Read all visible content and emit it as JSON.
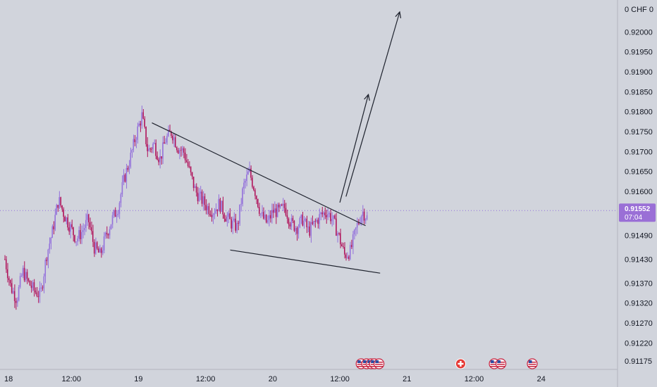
{
  "colors": {
    "background": "#d1d4dc",
    "up_candle": "#9370db",
    "down_candle": "#b0125a",
    "trendline": "#1e222d",
    "price_badge": "#9a6fd6",
    "price_line": "#9370db",
    "event_us": "#c6203e",
    "event_ch": "#e53935"
  },
  "chart_data": {
    "type": "candlestick",
    "symbol_unit": "CHF",
    "y_axis": {
      "header_label": "0 CHF 0",
      "ylim": [
        0.9115,
        0.9208
      ],
      "ticks": [
        "0.92000",
        "0.91950",
        "0.91900",
        "0.91850",
        "0.91800",
        "0.91750",
        "0.91700",
        "0.91650",
        "0.91600",
        "0.91490",
        "0.91430",
        "0.91370",
        "0.91320",
        "0.91270",
        "0.91220",
        "0.91175"
      ],
      "tick_values": [
        0.92,
        0.9195,
        0.919,
        0.9185,
        0.918,
        0.9175,
        0.917,
        0.9165,
        0.916,
        0.9149,
        0.9143,
        0.9137,
        0.9132,
        0.9127,
        0.9122,
        0.91175
      ]
    },
    "x_axis": {
      "ticks": [
        "18",
        "12:00",
        "19",
        "12:00",
        "20",
        "12:00",
        "21",
        "12:00",
        "24"
      ],
      "tick_hours": [
        0,
        12,
        24,
        36,
        48,
        60,
        72,
        84,
        96
      ],
      "xlim_hours": [
        0,
        108
      ]
    },
    "current_price": {
      "value": 0.91552,
      "label": "0.91552",
      "countdown": "07:04"
    },
    "bars_per_hour": 4,
    "ohlc_anchor_closes": [
      0.9143,
      0.9136,
      0.9133,
      0.914,
      0.9137,
      0.9135,
      0.9134,
      0.9144,
      0.915,
      0.9158,
      0.9154,
      0.9151,
      0.9148,
      0.915,
      0.9153,
      0.9146,
      0.9144,
      0.9149,
      0.9153,
      0.9156,
      0.9163,
      0.9168,
      0.9174,
      0.9179,
      0.917,
      0.9172,
      0.9168,
      0.9173,
      0.9175,
      0.9171,
      0.917,
      0.9165,
      0.916,
      0.9158,
      0.9156,
      0.9155,
      0.9157,
      0.9154,
      0.9152,
      0.9151,
      0.9161,
      0.9165,
      0.916,
      0.9154,
      0.9152,
      0.9155,
      0.9155,
      0.9156,
      0.9152,
      0.9151,
      0.9153,
      0.915,
      0.9152,
      0.9154,
      0.9155,
      0.9153,
      0.9149,
      0.9144,
      0.9145,
      0.9151,
      0.9155,
      0.9153
    ],
    "trendlines": [
      {
        "name": "upper-wedge-line",
        "start": {
          "hours": 26.4,
          "price": 0.91772
        },
        "end": {
          "hours": 64.6,
          "price": 0.91514
        }
      },
      {
        "name": "lower-wedge-line",
        "start": {
          "hours": 40.4,
          "price": 0.91453
        },
        "end": {
          "hours": 67.2,
          "price": 0.91395
        }
      },
      {
        "name": "target-arrow-1",
        "start": {
          "hours": 60.0,
          "price": 0.91572
        },
        "end": {
          "hours": 65.1,
          "price": 0.91843
        }
      },
      {
        "name": "target-arrow-2",
        "start": {
          "hours": 61.1,
          "price": 0.91587
        },
        "end": {
          "hours": 70.7,
          "price": 0.9205
        }
      }
    ],
    "events": [
      {
        "flag": "US",
        "hours": 63.8
      },
      {
        "flag": "US",
        "hours": 64.8
      },
      {
        "flag": "US",
        "hours": 65.6
      },
      {
        "flag": "US",
        "hours": 66.2
      },
      {
        "flag": "US",
        "hours": 67.0
      },
      {
        "flag": "CH",
        "hours": 81.6
      },
      {
        "flag": "US",
        "hours": 87.6
      },
      {
        "flag": "US",
        "hours": 88.8
      },
      {
        "flag": "US",
        "hours": 94.4
      }
    ]
  }
}
